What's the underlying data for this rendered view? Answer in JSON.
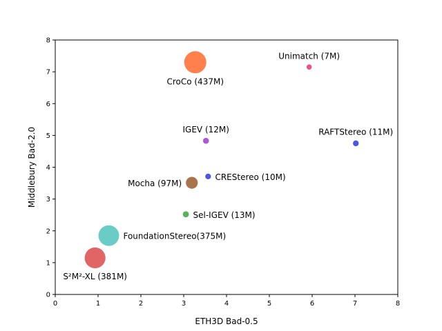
{
  "chart_data": {
    "type": "scatter",
    "xlabel": "ETH3D Bad-0.5",
    "ylabel": "Middlebury Bad-2.0",
    "xlim": [
      0,
      8
    ],
    "ylim": [
      0,
      8
    ],
    "xticks": [
      0,
      1,
      2,
      3,
      4,
      5,
      6,
      7,
      8
    ],
    "yticks": [
      0,
      1,
      2,
      3,
      4,
      5,
      6,
      7,
      8
    ],
    "grid": false,
    "points": [
      {
        "label": "CroCo (437M)",
        "x": 3.27,
        "y": 7.3,
        "params_m": 437,
        "color": "#ff6a2e",
        "label_pos": "below"
      },
      {
        "label": "Unimatch (7M)",
        "x": 5.93,
        "y": 7.15,
        "params_m": 7,
        "color": "#e8336b",
        "label_pos": "above"
      },
      {
        "label": "IGEV (12M)",
        "x": 3.52,
        "y": 4.83,
        "params_m": 12,
        "color": "#a03ad0",
        "label_pos": "above"
      },
      {
        "label": "RAFTStereo (11M)",
        "x": 7.02,
        "y": 4.75,
        "params_m": 11,
        "color": "#2a3ad8",
        "label_pos": "above"
      },
      {
        "label": "CREStereo (10M)",
        "x": 3.57,
        "y": 3.71,
        "params_m": 10,
        "color": "#2a3ad8",
        "label_pos": "right"
      },
      {
        "label": "Mocha (97M)",
        "x": 3.19,
        "y": 3.51,
        "params_m": 97,
        "color": "#9a5a2e",
        "label_pos": "left"
      },
      {
        "label": "Sel-IGEV (13M)",
        "x": 3.05,
        "y": 2.52,
        "params_m": 13,
        "color": "#3aa63a",
        "label_pos": "right"
      },
      {
        "label": "FoundationStereo(375M)",
        "x": 1.25,
        "y": 1.85,
        "params_m": 375,
        "color": "#4fc4bc",
        "label_pos": "right"
      },
      {
        "label": "S²M²-XL (381M)",
        "x": 0.93,
        "y": 1.15,
        "params_m": 381,
        "color": "#dd4a4a",
        "label_pos": "below"
      }
    ]
  }
}
